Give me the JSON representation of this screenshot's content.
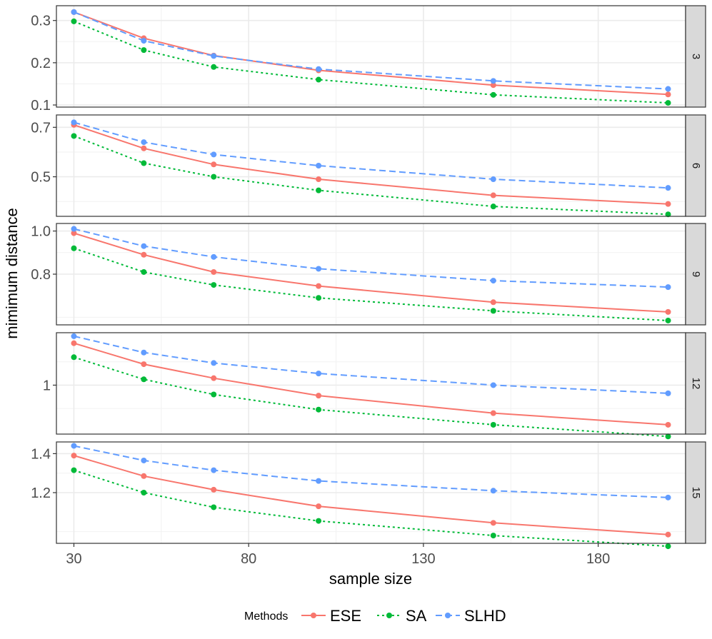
{
  "chart_data": {
    "type": "line",
    "xlabel": "sample size",
    "ylabel": "mimimum distance",
    "x": [
      30,
      50,
      70,
      100,
      150,
      200
    ],
    "x_ticks": [
      30,
      80,
      130,
      180
    ],
    "xlim": [
      25,
      205
    ],
    "legend": {
      "title": "Methods",
      "position": "bottom",
      "entries": [
        {
          "name": "ESE",
          "color": "#F8766D",
          "dash": "solid"
        },
        {
          "name": "SA",
          "color": "#00BA38",
          "dash": "dotted"
        },
        {
          "name": "SLHD",
          "color": "#619CFF",
          "dash": "dashed"
        }
      ]
    },
    "panels": [
      {
        "strip": "3",
        "ylim": [
          0.095,
          0.335
        ],
        "y_ticks": [
          0.1,
          0.2,
          0.3
        ],
        "y_tick_labels": [
          "0.1",
          "0.2",
          "0.3"
        ],
        "y_minor": [
          0.15,
          0.25
        ],
        "series": [
          {
            "name": "ESE",
            "values": [
              0.32,
              0.258,
              0.217,
              0.182,
              0.147,
              0.125
            ]
          },
          {
            "name": "SA",
            "values": [
              0.298,
              0.23,
              0.19,
              0.16,
              0.124,
              0.105
            ]
          },
          {
            "name": "SLHD",
            "values": [
              0.32,
              0.252,
              0.216,
              0.185,
              0.157,
              0.138
            ]
          }
        ]
      },
      {
        "strip": "6",
        "ylim": [
          0.34,
          0.75
        ],
        "y_ticks": [
          0.5,
          0.7
        ],
        "y_tick_labels": [
          "0.5",
          "0.7"
        ],
        "y_minor": [
          0.4,
          0.6
        ],
        "series": [
          {
            "name": "ESE",
            "values": [
              0.71,
              0.615,
              0.55,
              0.49,
              0.425,
              0.39
            ]
          },
          {
            "name": "SA",
            "values": [
              0.665,
              0.555,
              0.5,
              0.445,
              0.38,
              0.348
            ]
          },
          {
            "name": "SLHD",
            "values": [
              0.72,
              0.64,
              0.59,
              0.545,
              0.49,
              0.455
            ]
          }
        ]
      },
      {
        "strip": "9",
        "ylim": [
          0.565,
          1.035
        ],
        "y_ticks": [
          0.8,
          1.0
        ],
        "y_tick_labels": [
          "0.8",
          "1.0"
        ],
        "y_minor": [
          0.6,
          0.9
        ],
        "series": [
          {
            "name": "ESE",
            "values": [
              0.99,
              0.89,
              0.81,
              0.745,
              0.67,
              0.625
            ]
          },
          {
            "name": "SA",
            "values": [
              0.92,
              0.81,
              0.75,
              0.69,
              0.63,
              0.585
            ]
          },
          {
            "name": "SLHD",
            "values": [
              1.01,
              0.93,
              0.88,
              0.825,
              0.77,
              0.74
            ]
          }
        ]
      },
      {
        "strip": "12",
        "ylim": [
          0.79,
          1.225
        ],
        "y_ticks": [
          1.0
        ],
        "y_tick_labels": [
          "1"
        ],
        "y_minor": [
          0.9,
          1.1
        ],
        "series": [
          {
            "name": "ESE",
            "values": [
              1.18,
              1.09,
              1.03,
              0.955,
              0.88,
              0.83
            ]
          },
          {
            "name": "SA",
            "values": [
              1.12,
              1.025,
              0.96,
              0.895,
              0.83,
              0.78
            ]
          },
          {
            "name": "SLHD",
            "values": [
              1.21,
              1.14,
              1.095,
              1.05,
              1.0,
              0.965
            ]
          }
        ]
      },
      {
        "strip": "15",
        "ylim": [
          0.94,
          1.46
        ],
        "y_ticks": [
          1.2,
          1.4
        ],
        "y_tick_labels": [
          "1.2",
          "1.4"
        ],
        "y_minor": [
          1.0,
          1.3
        ],
        "series": [
          {
            "name": "ESE",
            "values": [
              1.39,
              1.285,
              1.215,
              1.13,
              1.045,
              0.985
            ]
          },
          {
            "name": "SA",
            "values": [
              1.315,
              1.2,
              1.125,
              1.055,
              0.98,
              0.925
            ]
          },
          {
            "name": "SLHD",
            "values": [
              1.44,
              1.365,
              1.315,
              1.26,
              1.21,
              1.175
            ]
          }
        ]
      }
    ]
  }
}
